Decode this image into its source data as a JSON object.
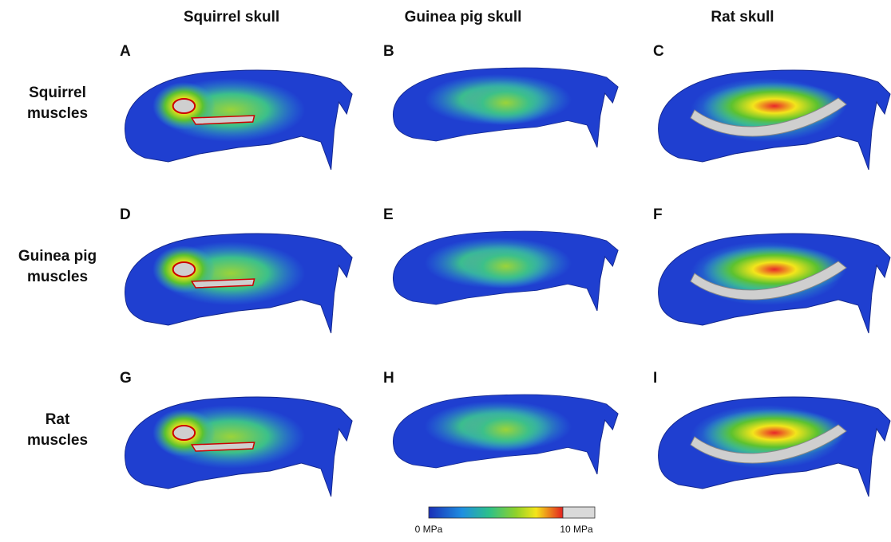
{
  "columns": [
    "Squirrel skull",
    "Guinea pig skull",
    "Rat skull"
  ],
  "rows": [
    [
      "Squirrel",
      "muscles"
    ],
    [
      "Guinea pig",
      "muscles"
    ],
    [
      "Rat",
      "muscles"
    ]
  ],
  "panels": [
    "A",
    "B",
    "C",
    "D",
    "E",
    "F",
    "G",
    "H",
    "I"
  ],
  "colorbar": {
    "min_label": "0 MPa",
    "max_label": "10 MPa"
  }
}
